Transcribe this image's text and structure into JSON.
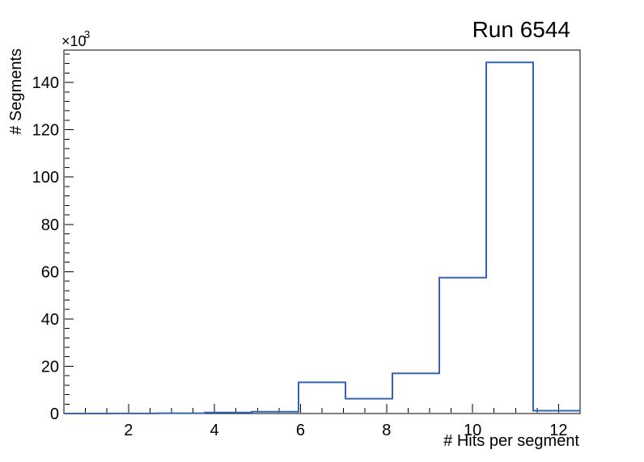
{
  "window": {
    "background_color": "#ffffff"
  },
  "chart_data": {
    "type": "histogram-step",
    "title": "Run 6544",
    "xlabel": "# Hits per segment",
    "ylabel": "# Segments",
    "y_axis_multiplier": {
      "base": "×10",
      "exponent": "3"
    },
    "x_range": [
      0.5,
      12.5
    ],
    "n_bins": 11,
    "bin_edges": [
      0.5,
      1.591,
      2.682,
      3.773,
      4.864,
      5.955,
      7.045,
      8.136,
      9.227,
      10.318,
      11.409,
      12.5
    ],
    "bin_values": [
      0,
      50,
      150,
      400,
      800,
      13200,
      6300,
      17000,
      57500,
      148500,
      1200
    ],
    "ylim": [
      0,
      153700
    ],
    "x_major_ticks": [
      2,
      4,
      6,
      8,
      10,
      12
    ],
    "x_minor_tick_step": 0.5,
    "y_major_tick_step": 20000,
    "y_minor_tick_step": 4000,
    "y_tick_label_divisor": 1000,
    "grid": false,
    "legend_position": "none",
    "line_color": "#3565b2",
    "axis_color": "#000000"
  }
}
